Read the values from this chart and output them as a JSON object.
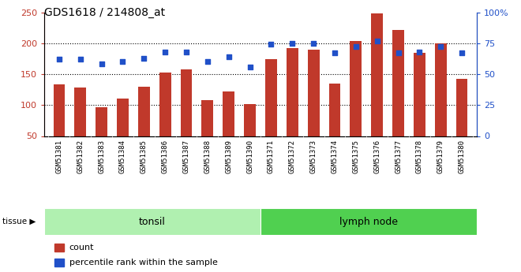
{
  "title": "GDS1618 / 214808_at",
  "categories": [
    "GSM51381",
    "GSM51382",
    "GSM51383",
    "GSM51384",
    "GSM51385",
    "GSM51386",
    "GSM51387",
    "GSM51388",
    "GSM51389",
    "GSM51390",
    "GSM51371",
    "GSM51372",
    "GSM51373",
    "GSM51374",
    "GSM51375",
    "GSM51376",
    "GSM51377",
    "GSM51378",
    "GSM51379",
    "GSM51380"
  ],
  "bar_values": [
    133,
    128,
    97,
    110,
    129,
    153,
    158,
    108,
    122,
    102,
    174,
    192,
    190,
    135,
    204,
    248,
    222,
    184,
    200,
    143
  ],
  "dot_values": [
    62,
    62,
    58,
    60,
    63,
    68,
    68,
    60,
    64,
    56,
    74,
    75,
    75,
    67,
    72,
    77,
    67,
    68,
    72,
    67
  ],
  "bar_color": "#c0392b",
  "dot_color": "#2050c8",
  "tonsil_count": 10,
  "lymph_count": 10,
  "tonsil_label": "tonsil",
  "lymph_label": "lymph node",
  "tissue_label": "tissue",
  "legend_bar": "count",
  "legend_dot": "percentile rank within the sample",
  "ylim_left": [
    50,
    250
  ],
  "ylim_right": [
    0,
    100
  ],
  "yticks_left": [
    50,
    100,
    150,
    200,
    250
  ],
  "yticks_right": [
    0,
    25,
    50,
    75,
    100
  ],
  "grid_vals": [
    100,
    150,
    200
  ],
  "bar_color_dark": "#c0392b",
  "dot_color_blue": "#2050c8",
  "bg_color": "#cccccc",
  "tonsil_bg": "#b0f0b0",
  "lymph_bg": "#50d050",
  "plot_bg": "white"
}
